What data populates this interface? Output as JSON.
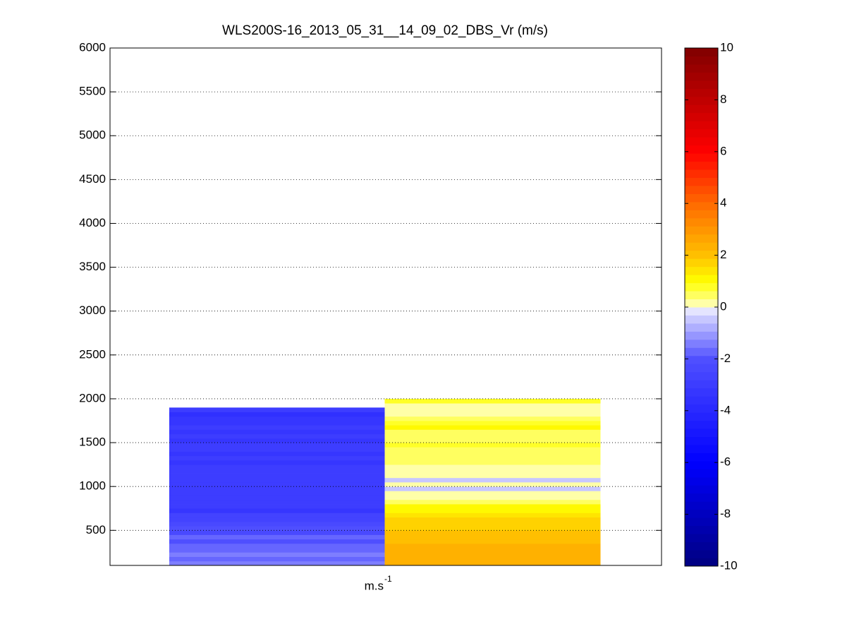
{
  "chart_data": {
    "type": "heatmap",
    "title": "WLS200S-16_2013_05_31__14_09_02_DBS_Vr (m/s)",
    "xlabel": {
      "base": "m.s",
      "superscript": "-1"
    },
    "categories": [
      null,
      null
    ],
    "y_edges": [
      100,
      150,
      200,
      250,
      300,
      350,
      400,
      450,
      500,
      550,
      600,
      650,
      700,
      750,
      800,
      850,
      900,
      950,
      1000,
      1050,
      1100,
      1150,
      1200,
      1250,
      1300,
      1350,
      1400,
      1450,
      1500,
      1550,
      1600,
      1650,
      1700,
      1750,
      1800,
      1850,
      1900,
      1950,
      2000
    ],
    "values": [
      [
        -1.5,
        -1.6,
        -1.4,
        -1.8,
        -1.6,
        -2.0,
        -1.7,
        -2.2,
        -2.0,
        -2.4,
        -2.6,
        -2.8,
        -3.4,
        -3.0,
        -3.0,
        -3.0,
        -3.0,
        -3.0,
        -3.0,
        -3.0,
        -3.0,
        -3.0,
        -3.0,
        -3.2,
        -3.0,
        -3.2,
        -3.0,
        -3.0,
        -3.2,
        -3.0,
        -3.2,
        -3.0,
        -3.4,
        -3.2,
        -3.5,
        -3.0,
        null,
        null
      ],
      [
        2.4,
        2.3,
        2.4,
        2.2,
        2.3,
        2.1,
        2.0,
        1.9,
        1.8,
        1.7,
        1.6,
        1.4,
        1.2,
        1.0,
        0.6,
        0.1,
        0.2,
        -0.5,
        0.1,
        -0.4,
        0.1,
        0.1,
        0.2,
        0.5,
        0.4,
        0.6,
        0.5,
        0.8,
        0.5,
        0.4,
        0.6,
        1.0,
        0.8,
        0.5,
        0.1,
        0.1,
        0.1,
        0.9
      ]
    ],
    "ylim": [
      100,
      6000
    ],
    "yticks": [
      500,
      1000,
      1500,
      2000,
      2500,
      3000,
      3500,
      4000,
      4500,
      5000,
      5500,
      6000
    ],
    "grid": true,
    "clim": [
      -10,
      10
    ],
    "cticks": [
      -10,
      -8,
      -6,
      -4,
      -2,
      0,
      2,
      4,
      6,
      8,
      10
    ]
  }
}
